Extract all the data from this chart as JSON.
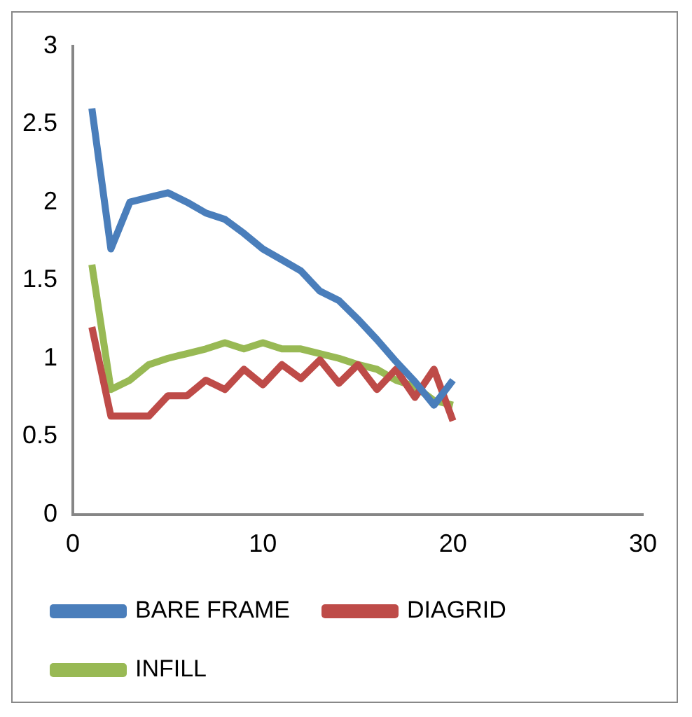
{
  "chart_data": {
    "type": "line",
    "x": [
      1,
      2,
      3,
      4,
      5,
      6,
      7,
      8,
      9,
      10,
      11,
      12,
      13,
      14,
      15,
      16,
      17,
      18,
      19,
      20
    ],
    "series": [
      {
        "name": "BARE FRAME",
        "color": "#4a7ebb",
        "values": [
          2.6,
          1.7,
          2.0,
          2.03,
          2.06,
          2.0,
          1.93,
          1.89,
          1.8,
          1.7,
          1.63,
          1.56,
          1.43,
          1.37,
          1.25,
          1.12,
          0.98,
          0.85,
          0.7,
          0.86
        ]
      },
      {
        "name": "DIAGRID",
        "color": "#be4b48",
        "values": [
          1.2,
          0.63,
          0.63,
          0.63,
          0.76,
          0.76,
          0.86,
          0.8,
          0.93,
          0.83,
          0.96,
          0.87,
          0.99,
          0.84,
          0.96,
          0.8,
          0.93,
          0.75,
          0.93,
          0.6
        ]
      },
      {
        "name": "INFILL",
        "color": "#98b954",
        "values": [
          1.6,
          0.8,
          0.86,
          0.96,
          1.0,
          1.03,
          1.06,
          1.1,
          1.06,
          1.1,
          1.06,
          1.06,
          1.03,
          1.0,
          0.96,
          0.93,
          0.86,
          0.82,
          0.73,
          0.7
        ]
      }
    ],
    "xlim": [
      0,
      30
    ],
    "xticks": [
      0,
      10,
      20,
      30
    ],
    "ylim": [
      0,
      3
    ],
    "yticks": [
      0,
      0.5,
      1,
      1.5,
      2,
      2.5,
      3
    ],
    "grid": false,
    "legend": "bottom",
    "marker": "none",
    "line_style": "solid"
  }
}
